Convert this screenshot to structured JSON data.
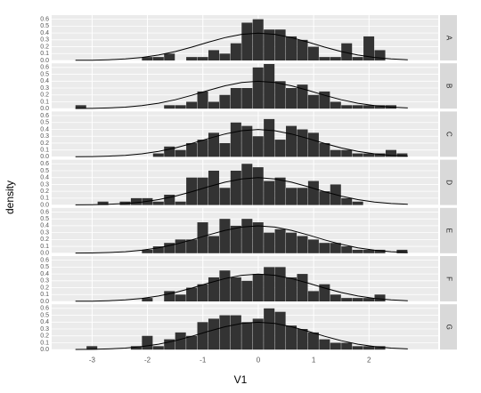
{
  "chart_data": [
    {
      "type": "histogram",
      "strip": "A",
      "values": [
        0,
        0,
        0,
        0,
        0,
        0,
        0.05,
        0.05,
        0.1,
        0,
        0.05,
        0.05,
        0.15,
        0.1,
        0.25,
        0.55,
        0.6,
        0.45,
        0.45,
        0.35,
        0.3,
        0.2,
        0.05,
        0.05,
        0.25,
        0.05,
        0.35,
        0.15,
        0,
        0
      ]
    },
    {
      "type": "histogram",
      "strip": "B",
      "values": [
        0.05,
        0,
        0,
        0,
        0,
        0,
        0,
        0,
        0.05,
        0.05,
        0.1,
        0.25,
        0.1,
        0.2,
        0.3,
        0.3,
        0.6,
        0.65,
        0.4,
        0.3,
        0.35,
        0.2,
        0.25,
        0.1,
        0.05,
        0.05,
        0.05,
        0.05,
        0.05,
        0
      ]
    },
    {
      "type": "histogram",
      "strip": "C",
      "values": [
        0,
        0,
        0,
        0,
        0,
        0,
        0,
        0.05,
        0.15,
        0.1,
        0.2,
        0.25,
        0.35,
        0.2,
        0.5,
        0.45,
        0.3,
        0.55,
        0.25,
        0.45,
        0.4,
        0.35,
        0.2,
        0.1,
        0.1,
        0.05,
        0.05,
        0.05,
        0.1,
        0.05
      ]
    },
    {
      "type": "histogram",
      "strip": "D",
      "values": [
        0,
        0,
        0.05,
        0,
        0.05,
        0.1,
        0.1,
        0.05,
        0.15,
        0.05,
        0.4,
        0.4,
        0.5,
        0.25,
        0.5,
        0.6,
        0.55,
        0.35,
        0.4,
        0.25,
        0.25,
        0.35,
        0.2,
        0.3,
        0.1,
        0.05,
        0,
        0,
        0,
        0
      ]
    },
    {
      "type": "histogram",
      "strip": "E",
      "values": [
        0,
        0,
        0,
        0,
        0,
        0,
        0.05,
        0.1,
        0.15,
        0.2,
        0.2,
        0.45,
        0.25,
        0.5,
        0.4,
        0.5,
        0.45,
        0.3,
        0.35,
        0.3,
        0.25,
        0.2,
        0.15,
        0.15,
        0.1,
        0.05,
        0.05,
        0.05,
        0,
        0.05
      ]
    },
    {
      "type": "histogram",
      "strip": "F",
      "values": [
        0,
        0,
        0,
        0,
        0,
        0,
        0.05,
        0,
        0.15,
        0.1,
        0.2,
        0.25,
        0.35,
        0.45,
        0.35,
        0.3,
        0.4,
        0.5,
        0.5,
        0.35,
        0.4,
        0.15,
        0.25,
        0.1,
        0.05,
        0.05,
        0.05,
        0.1,
        0,
        0
      ]
    },
    {
      "type": "histogram",
      "strip": "G",
      "values": [
        0,
        0.05,
        0,
        0,
        0,
        0.05,
        0.2,
        0.05,
        0.15,
        0.25,
        0.2,
        0.4,
        0.45,
        0.5,
        0.5,
        0.4,
        0.45,
        0.6,
        0.55,
        0.35,
        0.3,
        0.25,
        0.15,
        0.1,
        0.1,
        0.05,
        0.05,
        0.05,
        0,
        0
      ]
    }
  ],
  "shared": {
    "x_label": "V1",
    "y_label": "density",
    "bins": [
      -3.3,
      -3.1,
      -2.9,
      -2.7,
      -2.5,
      -2.3,
      -2.1,
      -1.9,
      -1.7,
      -1.5,
      -1.3,
      -1.1,
      -0.9,
      -0.7,
      -0.5,
      -0.3,
      -0.1,
      0.1,
      0.3,
      0.5,
      0.7,
      0.9,
      1.1,
      1.3,
      1.5,
      1.7,
      1.9,
      2.1,
      2.3,
      2.5,
      2.7
    ],
    "xlim": [
      -3.73,
      3.25
    ],
    "xticks": [
      -3,
      -2,
      -1,
      0,
      1,
      2
    ],
    "ylim": [
      0,
      0.66
    ],
    "yticks": [
      {
        "value": 0,
        "label": "0.0"
      },
      0.1,
      0.2,
      0.3,
      0.4,
      0.5,
      0.6
    ],
    "bar_color": "#333333",
    "curve": {
      "x": [
        -3.3,
        -3,
        -2.7,
        -2.4,
        -2.1,
        -1.8,
        -1.5,
        -1.2,
        -0.9,
        -0.6,
        -0.3,
        0,
        0.3,
        0.6,
        0.9,
        1.2,
        1.5,
        1.8,
        2.1,
        2.4,
        2.7
      ],
      "values": [
        0.002,
        0.004,
        0.01,
        0.022,
        0.044,
        0.079,
        0.13,
        0.194,
        0.266,
        0.333,
        0.381,
        0.399,
        0.381,
        0.333,
        0.266,
        0.194,
        0.13,
        0.079,
        0.044,
        0.022,
        0.01
      ],
      "color": "#000000"
    }
  }
}
